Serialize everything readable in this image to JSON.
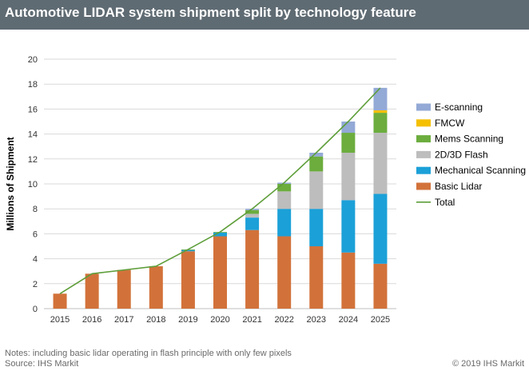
{
  "header": {
    "title": "Automotive LIDAR system shipment split by technology feature"
  },
  "chart_data": {
    "type": "bar",
    "stacked": true,
    "title": "Automotive LIDAR system shipment split by technology feature",
    "xlabel": "",
    "ylabel": "Millions of Shipment",
    "ylim": [
      0,
      20
    ],
    "yticks": [
      "0",
      "2",
      "4",
      "6",
      "8",
      "10",
      "12",
      "14",
      "16",
      "18",
      "20"
    ],
    "grid": true,
    "legend_position": "right",
    "categories": [
      "2015",
      "2016",
      "2017",
      "2018",
      "2019",
      "2020",
      "2021",
      "2022",
      "2023",
      "2024",
      "2025"
    ],
    "series": [
      {
        "name": "Basic Lidar",
        "color": "#d2723a",
        "values": [
          1.2,
          2.8,
          3.1,
          3.4,
          4.6,
          5.8,
          6.3,
          5.8,
          5.0,
          4.5,
          3.6
        ]
      },
      {
        "name": "Mechanical Scanning",
        "color": "#1ba0d8",
        "values": [
          0,
          0,
          0,
          0,
          0.1,
          0.3,
          1.0,
          2.2,
          3.0,
          4.2,
          5.6
        ]
      },
      {
        "name": "2D/3D Flash",
        "color": "#bdbdbd",
        "values": [
          0,
          0,
          0,
          0,
          0,
          0,
          0.3,
          1.4,
          3.0,
          3.8,
          4.9
        ]
      },
      {
        "name": "Mems Scanning",
        "color": "#6cad3e",
        "values": [
          0,
          0,
          0,
          0,
          0.05,
          0.05,
          0.3,
          0.6,
          1.2,
          1.6,
          1.6
        ]
      },
      {
        "name": "FMCW",
        "color": "#f5c000",
        "values": [
          0,
          0,
          0,
          0,
          0,
          0,
          0,
          0,
          0,
          0,
          0.2
        ]
      },
      {
        "name": "E-scanning",
        "color": "#93a9d6",
        "values": [
          0,
          0,
          0,
          0,
          0,
          0,
          0.1,
          0.1,
          0.3,
          0.9,
          1.8
        ]
      }
    ],
    "line_series": {
      "name": "Total",
      "color": "#5e9e3a",
      "values": [
        1.2,
        2.8,
        3.1,
        3.4,
        4.75,
        6.15,
        8.0,
        10.1,
        12.5,
        15.0,
        17.7
      ]
    },
    "legend_order": [
      "E-scanning",
      "FMCW",
      "Mems Scanning",
      "2D/3D Flash",
      "Mechanical Scanning",
      "Basic Lidar",
      "Total"
    ]
  },
  "footer": {
    "notes": "Notes: including  basic lidar operating in flash principle with only few pixels",
    "source": "Source: IHS Markit",
    "copyright": "© 2019 IHS Markit"
  }
}
